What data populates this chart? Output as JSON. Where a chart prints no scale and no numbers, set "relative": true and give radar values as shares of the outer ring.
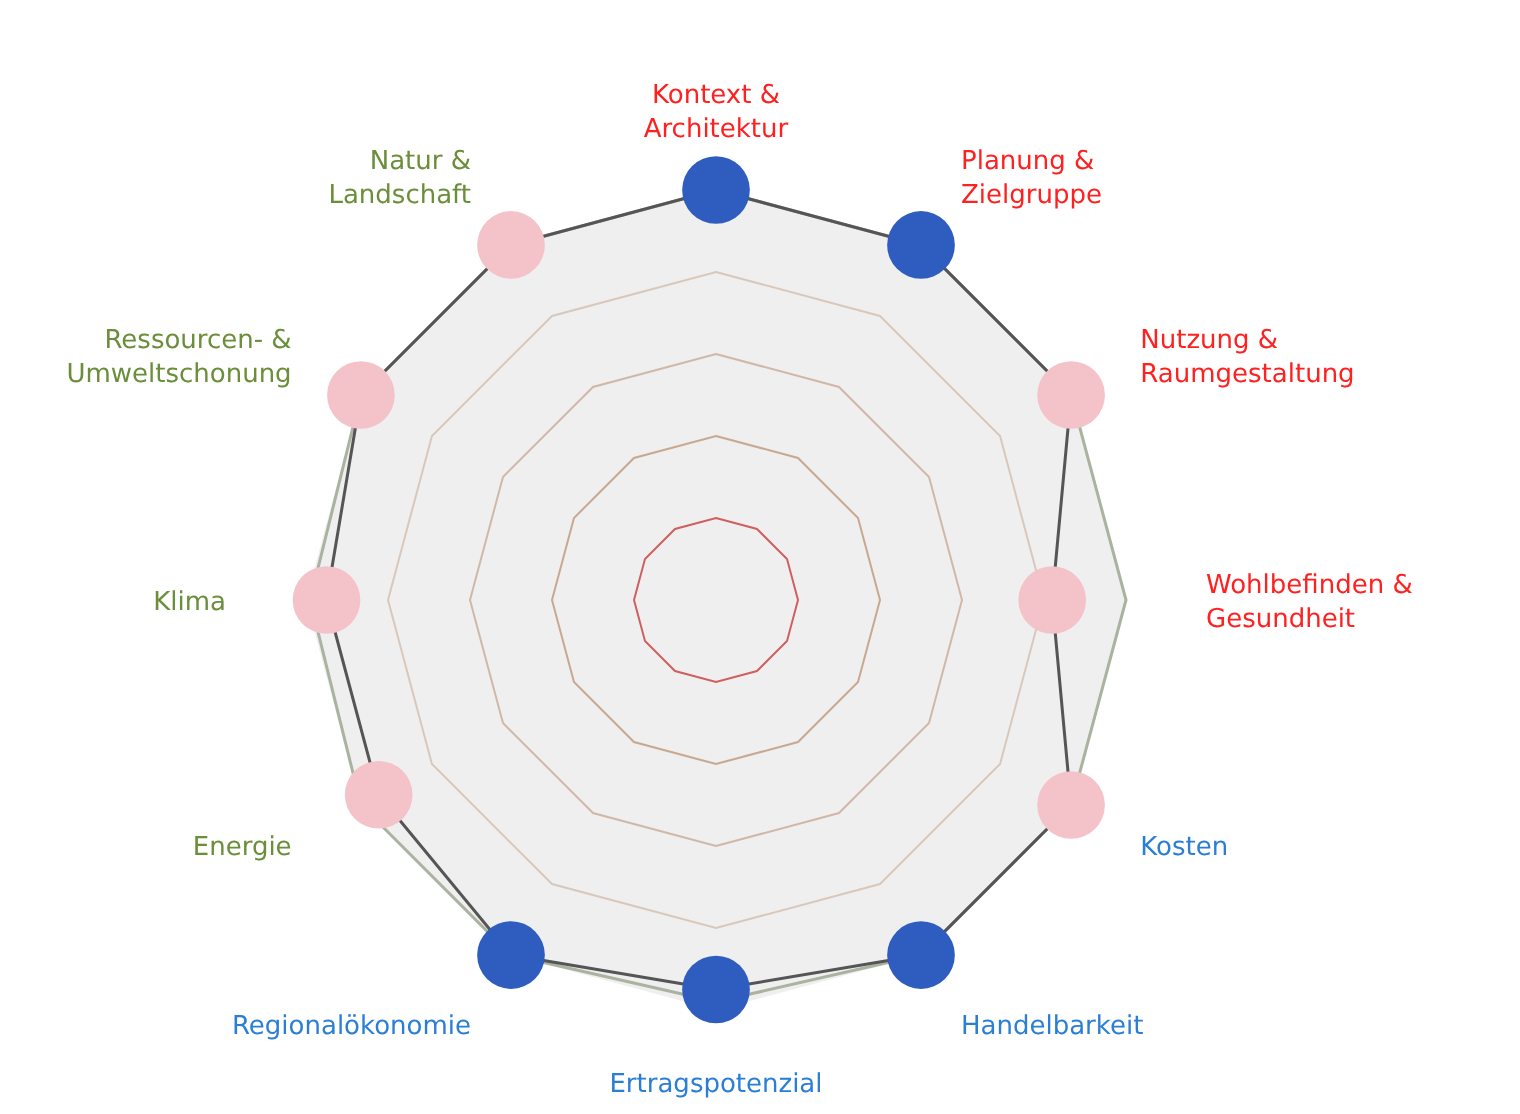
{
  "chart_data": {
    "type": "radar",
    "relative": true,
    "grid": true,
    "categories": [
      "Kontext & Architektur",
      "Planung & Zielgruppe",
      "Nutzung & Raumgestaltung",
      "Wohlbefinden & Gesundheit",
      "Kosten",
      "Handelbarkeit",
      "Ertragspotenzial",
      "Regionalökonomie",
      "Energie",
      "Klima",
      "Ressourcen- & Umweltschonung",
      "Natur & Landschaft"
    ],
    "series": [
      {
        "color": "#a9b3a0",
        "marker": "none",
        "values": [
          1,
          1,
          1,
          1,
          1,
          1,
          0.98,
          1,
          1,
          0.99,
          1,
          1
        ]
      },
      {
        "color": "#555555",
        "marker": "circle",
        "values": [
          1,
          1,
          1,
          0.82,
          1,
          1,
          0.95,
          1,
          0.95,
          0.95,
          1,
          1
        ],
        "colors": [
          "#2f5dbf",
          "#2f5dbf",
          "#f4c3c9",
          "#f4c3c9",
          "#f4c3c9",
          "#2f5dbf",
          "#2f5dbf",
          "#2f5dbf",
          "#f4c3c9",
          "#f4c3c9",
          "#f4c3c9",
          "#f4c3c9"
        ]
      }
    ]
  }
}
